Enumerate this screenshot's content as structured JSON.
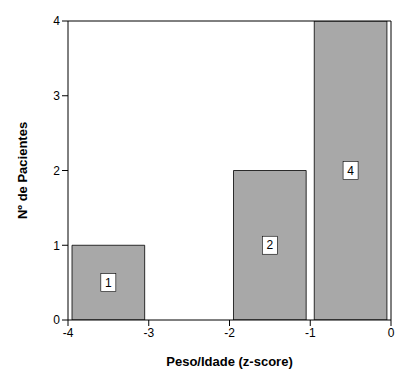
{
  "chart_data": {
    "type": "histogram",
    "bins": [
      -4,
      -3,
      -2,
      -1,
      0
    ],
    "values": [
      1,
      0,
      2,
      4
    ],
    "color": "#a8a8a8",
    "x_label": "Peso/Idade (z-score)",
    "y_label": "Nº de Pacientes",
    "xlim": [
      -4,
      0
    ],
    "xticks": [
      -4,
      -3,
      -2,
      -1,
      0
    ],
    "ylim": [
      0,
      4
    ],
    "yticks": [
      0,
      1,
      2,
      3,
      4
    ],
    "grid": false,
    "data_labels": true
  }
}
